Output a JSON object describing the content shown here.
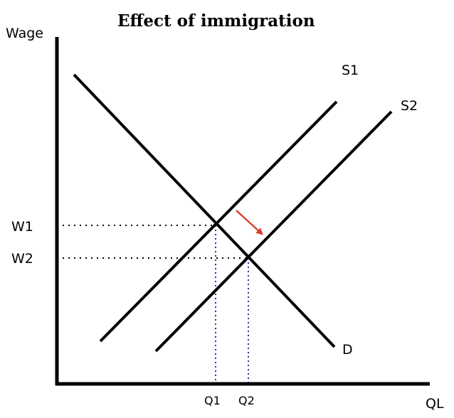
{
  "diagram": {
    "title": "Effect of immigration",
    "y_axis_label": "Wage",
    "x_axis_label": "QL",
    "curves": {
      "demand": "D",
      "supply1": "S1",
      "supply2": "S2"
    },
    "wage_levels": {
      "w1": "W1",
      "w2": "W2"
    },
    "quantity_levels": {
      "q1": "Q1",
      "q2": "Q2"
    },
    "shift_arrow_color": "#d9402b",
    "guide_color_vertical": "#2233aa"
  }
}
